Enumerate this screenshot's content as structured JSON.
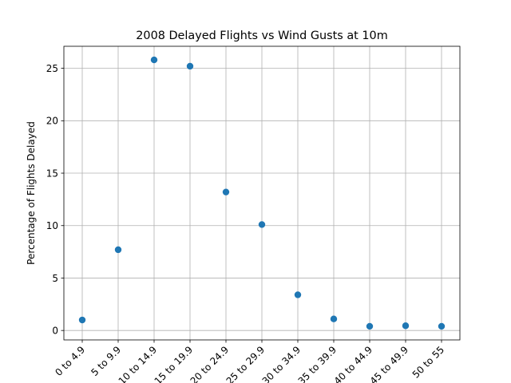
{
  "chart_data": {
    "type": "scatter",
    "title": "2008 Delayed Flights vs Wind Gusts at 10m",
    "xlabel": "",
    "ylabel": "Percentage of Flights Delayed",
    "categories": [
      "0 to 4.9",
      "5 to 9.9",
      "10 to 14.9",
      "15 to 19.9",
      "20 to 24.9",
      "25 to 29.9",
      "30 to 34.9",
      "35 to 39.9",
      "40 to 44.9",
      "45 to 49.9",
      "50 to 55"
    ],
    "values": [
      1.0,
      7.7,
      25.8,
      25.2,
      13.2,
      10.1,
      3.4,
      1.1,
      0.4,
      0.45,
      0.4
    ],
    "ylim": [
      -0.9,
      27.1
    ],
    "yticks": [
      0,
      5,
      10,
      15,
      20,
      25
    ],
    "grid": true,
    "colors": {
      "marker": "#1f77b4",
      "grid": "#b0b0b0",
      "axis": "#000000"
    }
  }
}
